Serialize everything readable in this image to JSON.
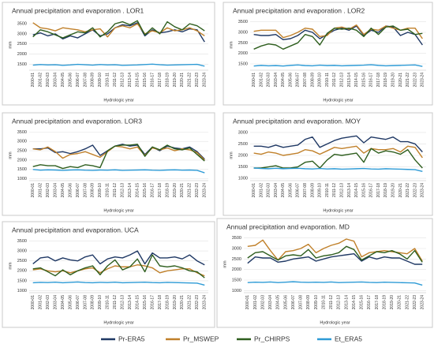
{
  "chart_data": [
    {
      "type": "line",
      "title": "Annual precipitation and evaporation . LOR1",
      "y_label": "mm",
      "x_label": "Hydrologic year",
      "categories": [
        "2000-01",
        "2001-02",
        "2002-03",
        "2003-04",
        "2004-05",
        "2005-06",
        "2006-07",
        "2007-08",
        "2008-09",
        "2009-10",
        "2010-11",
        "2011-12",
        "2012-13",
        "2013-14",
        "2014-15",
        "2015-16",
        "2016-17",
        "2017-18",
        "2018-19",
        "2019-20",
        "2020-21",
        "2021-22",
        "2022-23",
        "2023-24"
      ],
      "ylim": [
        1200,
        3700
      ],
      "yticks": [
        1500,
        2000,
        2500,
        3000,
        3500
      ],
      "grid": true,
      "series": [
        {
          "name": "Pr-ERA5",
          "color": "#1f3864",
          "values": [
            2950,
            3050,
            2900,
            3000,
            2750,
            2900,
            2800,
            3000,
            3200,
            2900,
            3000,
            3300,
            3450,
            3400,
            3550,
            2900,
            3200,
            3050,
            3100,
            3200,
            3100,
            3250,
            3200,
            2600
          ]
        },
        {
          "name": "Pr_MSWEP",
          "color": "#c0802a",
          "values": [
            3550,
            3300,
            3250,
            3150,
            3300,
            3250,
            3200,
            3100,
            3200,
            3250,
            2850,
            3300,
            3400,
            3300,
            3500,
            3000,
            3150,
            3050,
            3300,
            3150,
            3200,
            3300,
            3150,
            2900
          ]
        },
        {
          "name": "Pr_CHIRPS",
          "color": "#2e5e1e",
          "values": [
            2850,
            3200,
            3100,
            2950,
            2800,
            2950,
            3100,
            3050,
            3300,
            2850,
            3100,
            3500,
            3600,
            3450,
            3650,
            2950,
            3300,
            3000,
            3600,
            3350,
            3200,
            3500,
            3400,
            3150
          ]
        },
        {
          "name": "Et_ERA5",
          "color": "#2e9bd6",
          "values": [
            1450,
            1480,
            1460,
            1470,
            1440,
            1460,
            1490,
            1470,
            1450,
            1480,
            1460,
            1470,
            1440,
            1450,
            1460,
            1480,
            1500,
            1470,
            1450,
            1460,
            1470,
            1480,
            1490,
            1400
          ]
        }
      ]
    },
    {
      "type": "line",
      "title": "Annual precipitation and evaporation . LOR2",
      "y_label": "mm",
      "x_label": "Hydrologic year",
      "categories": [
        "2000-01",
        "2001-02",
        "2002-03",
        "2003-04",
        "2004-05",
        "2005-06",
        "2006-07",
        "2007-08",
        "2008-09",
        "2009-10",
        "2010-11",
        "2011-12",
        "2012-13",
        "2013-14",
        "2014-15",
        "2015-16",
        "2016-17",
        "2017-18",
        "2018-19",
        "2019-20",
        "2020-21",
        "2021-22",
        "2022-23",
        "2023-24"
      ],
      "ylim": [
        1200,
        3600
      ],
      "yticks": [
        1500,
        2000,
        2500,
        3000,
        3500
      ],
      "grid": true,
      "series": [
        {
          "name": "Pr-ERA5",
          "color": "#1f3864",
          "values": [
            2900,
            2850,
            2850,
            2900,
            2650,
            2700,
            2850,
            3100,
            3000,
            2700,
            2900,
            3100,
            3200,
            3100,
            3300,
            2850,
            3100,
            3000,
            3300,
            3250,
            2850,
            3000,
            2900,
            2400
          ]
        },
        {
          "name": "Pr_MSWEP",
          "color": "#c0802a",
          "values": [
            3050,
            3100,
            3100,
            3100,
            2750,
            2850,
            3000,
            3200,
            3150,
            2800,
            2850,
            3200,
            3250,
            3150,
            3350,
            2900,
            3150,
            3100,
            3300,
            3200,
            3100,
            3200,
            3200,
            2700
          ]
        },
        {
          "name": "Pr_CHIRPS",
          "color": "#2e5e1e",
          "values": [
            2200,
            2350,
            2450,
            2400,
            2200,
            2350,
            2500,
            2900,
            2800,
            2400,
            2950,
            3200,
            3150,
            3200,
            3100,
            2800,
            3200,
            2900,
            3250,
            3300,
            3100,
            3150,
            2900,
            2950
          ]
        },
        {
          "name": "Et_ERA5",
          "color": "#2e9bd6",
          "values": [
            1400,
            1430,
            1410,
            1420,
            1400,
            1430,
            1450,
            1420,
            1410,
            1440,
            1420,
            1430,
            1410,
            1420,
            1430,
            1440,
            1460,
            1430,
            1410,
            1420,
            1430,
            1440,
            1450,
            1380
          ]
        }
      ]
    },
    {
      "type": "line",
      "title": "Annual precipitation and evaporation. LOR3",
      "y_label": "mm",
      "x_label": "Hydrologic year",
      "categories": [
        "2000-01",
        "2001-02",
        "2002-03",
        "2003-04",
        "2004-05",
        "2005-06",
        "2006-07",
        "2007-08",
        "2008-09",
        "2009-10",
        "2010-11",
        "2011-12",
        "2012-13",
        "2013-14",
        "2014-15",
        "2015-16",
        "2016-17",
        "2017-18",
        "2018-19",
        "2019-20",
        "2020-21",
        "2021-22",
        "2022-23",
        "2023-24"
      ],
      "ylim": [
        900,
        3600
      ],
      "yticks": [
        1000,
        1500,
        2000,
        2500,
        3000,
        3500
      ],
      "grid": true,
      "series": [
        {
          "name": "Pr-ERA5",
          "color": "#1f3864",
          "values": [
            2600,
            2600,
            2650,
            2400,
            2450,
            2350,
            2450,
            2600,
            2800,
            2250,
            2500,
            2750,
            2850,
            2750,
            2800,
            2300,
            2700,
            2500,
            2750,
            2650,
            2600,
            2700,
            2450,
            2050
          ]
        },
        {
          "name": "Pr_MSWEP",
          "color": "#c0802a",
          "values": [
            2600,
            2550,
            2700,
            2450,
            2100,
            2300,
            2350,
            2450,
            2300,
            2150,
            2450,
            2750,
            2700,
            2600,
            2700,
            2250,
            2650,
            2550,
            2650,
            2500,
            2600,
            2550,
            2400,
            2000
          ]
        },
        {
          "name": "Pr_CHIRPS",
          "color": "#2e5e1e",
          "values": [
            1650,
            1750,
            1700,
            1700,
            1550,
            1650,
            1600,
            1750,
            1700,
            1600,
            2500,
            2750,
            2800,
            2800,
            2850,
            2200,
            2700,
            2550,
            2800,
            2600,
            2550,
            2650,
            2300,
            1950
          ]
        },
        {
          "name": "Et_ERA5",
          "color": "#2e9bd6",
          "values": [
            1500,
            1460,
            1480,
            1470,
            1450,
            1470,
            1480,
            1460,
            1450,
            1470,
            1460,
            1480,
            1450,
            1460,
            1470,
            1480,
            1460,
            1450,
            1470,
            1480,
            1460,
            1470,
            1450,
            1320
          ]
        }
      ]
    },
    {
      "type": "line",
      "title": "Annual precipitation and evaporation. MOY",
      "y_label": "mm",
      "x_label": "Hydrologic year",
      "categories": [
        "2000-01",
        "2001-02",
        "2002-03",
        "2003-04",
        "2004-05",
        "2005-06",
        "2006-07",
        "2007-08",
        "2008-09",
        "2009-10",
        "2010-11",
        "2011-12",
        "2012-13",
        "2013-14",
        "2014-15",
        "2015-16",
        "2016-17",
        "2017-18",
        "2018-19",
        "2019-20",
        "2020-21",
        "2021-22",
        "2022-23",
        "2023-24"
      ],
      "ylim": [
        900,
        3100
      ],
      "yticks": [
        1000,
        1500,
        2000,
        2500,
        3000
      ],
      "grid": true,
      "series": [
        {
          "name": "Pr-ERA5",
          "color": "#1f3864",
          "values": [
            2400,
            2400,
            2350,
            2450,
            2350,
            2400,
            2450,
            2700,
            2800,
            2350,
            2500,
            2650,
            2750,
            2800,
            2850,
            2550,
            2800,
            2750,
            2700,
            2800,
            2600,
            2600,
            2500,
            2150
          ]
        },
        {
          "name": "Pr_MSWEP",
          "color": "#c0802a",
          "values": [
            2100,
            2050,
            2150,
            2100,
            2000,
            2050,
            2100,
            2250,
            2200,
            2050,
            2200,
            2350,
            2300,
            2350,
            2400,
            2100,
            2300,
            2250,
            2250,
            2300,
            2150,
            2400,
            2350,
            1900
          ]
        },
        {
          "name": "Pr_CHIRPS",
          "color": "#2e5e1e",
          "values": [
            1450,
            1450,
            1500,
            1550,
            1450,
            1450,
            1500,
            1700,
            1750,
            1450,
            1800,
            2050,
            2000,
            2050,
            2100,
            1700,
            2300,
            2100,
            2200,
            2150,
            2050,
            2250,
            1800,
            1450
          ]
        },
        {
          "name": "Et_ERA5",
          "color": "#2e9bd6",
          "values": [
            1450,
            1430,
            1420,
            1440,
            1420,
            1430,
            1440,
            1420,
            1410,
            1430,
            1410,
            1420,
            1400,
            1410,
            1420,
            1430,
            1410,
            1400,
            1420,
            1410,
            1400,
            1390,
            1380,
            1300
          ]
        }
      ]
    },
    {
      "type": "line",
      "title": "Annual precipitation and evaporation. UCA",
      "y_label": "mm",
      "x_label": "Hydrologic year",
      "categories": [
        "2000-01",
        "2001-02",
        "2002-03",
        "2003-04",
        "2004-05",
        "2005-06",
        "2006-07",
        "2007-08",
        "2008-09",
        "2009-10",
        "2010-11",
        "2011-12",
        "2012-13",
        "2013-14",
        "2014-15",
        "2015-16",
        "2016-17",
        "2017-18",
        "2018-19",
        "2019-20",
        "2020-21",
        "2021-22",
        "2022-23",
        "2023-24"
      ],
      "ylim": [
        900,
        3600
      ],
      "yticks": [
        1000,
        1500,
        2000,
        2500,
        3000,
        3500
      ],
      "grid": true,
      "series": [
        {
          "name": "Pr-ERA5",
          "color": "#1f3864",
          "values": [
            2350,
            2650,
            2700,
            2500,
            2650,
            2550,
            2500,
            2700,
            2800,
            2350,
            2600,
            2700,
            2650,
            2800,
            3000,
            2350,
            2900,
            2650,
            2650,
            2700,
            2600,
            2800,
            2500,
            2300
          ]
        },
        {
          "name": "Pr_MSWEP",
          "color": "#c0802a",
          "values": [
            2050,
            2100,
            2000,
            1950,
            2000,
            1900,
            2000,
            2100,
            2150,
            1900,
            2100,
            2250,
            2200,
            2200,
            2300,
            2250,
            2150,
            1900,
            2000,
            2050,
            2100,
            2100,
            1900,
            1750
          ]
        },
        {
          "name": "Pr_CHIRPS",
          "color": "#2e5e1e",
          "values": [
            2100,
            2150,
            1950,
            1750,
            2050,
            1800,
            2000,
            2150,
            2250,
            1800,
            2250,
            2550,
            2050,
            2200,
            2600,
            1950,
            2800,
            2250,
            2200,
            2250,
            2150,
            2000,
            1950,
            1650
          ]
        },
        {
          "name": "Et_ERA5",
          "color": "#2e9bd6",
          "values": [
            1400,
            1420,
            1410,
            1430,
            1400,
            1420,
            1440,
            1410,
            1400,
            1420,
            1410,
            1430,
            1400,
            1410,
            1420,
            1430,
            1410,
            1400,
            1420,
            1410,
            1400,
            1390,
            1380,
            1280
          ]
        }
      ]
    },
    {
      "type": "line",
      "title": "Annual precipitation and evaporation. MD",
      "y_label": "mm",
      "x_label": "Hydrologic year",
      "categories": [
        "2000-01",
        "2001-02",
        "2002-03",
        "2003-04",
        "2004-05",
        "2005-06",
        "2006-07",
        "2007-08",
        "2008-09",
        "2009-10",
        "2010-11",
        "2011-12",
        "2012-13",
        "2013-14",
        "2014-15",
        "2015-16",
        "2016-17",
        "2017-18",
        "2018-19",
        "2019-20",
        "2020-21",
        "2021-22",
        "2022-23",
        "2023-24"
      ],
      "ylim": [
        900,
        3600
      ],
      "yticks": [
        1000,
        1500,
        2000,
        2500,
        3000,
        3500
      ],
      "grid": true,
      "series": [
        {
          "name": "Pr-ERA5",
          "color": "#1f3864",
          "values": [
            2300,
            2600,
            2550,
            2550,
            2350,
            2400,
            2500,
            2550,
            2600,
            2400,
            2500,
            2600,
            2650,
            2700,
            2750,
            2400,
            2600,
            2500,
            2600,
            2550,
            2550,
            2400,
            2250,
            2250
          ]
        },
        {
          "name": "Pr_MSWEP",
          "color": "#c0802a",
          "values": [
            3100,
            3150,
            3400,
            2900,
            2450,
            2850,
            2900,
            3000,
            3200,
            2800,
            3000,
            3150,
            3250,
            3450,
            3350,
            2600,
            2800,
            2850,
            2900,
            2850,
            2800,
            2750,
            3000,
            2400
          ]
        },
        {
          "name": "Pr_CHIRPS",
          "color": "#2e5e1e",
          "values": [
            2550,
            2800,
            2850,
            2650,
            2450,
            2650,
            2700,
            2650,
            2950,
            2550,
            2650,
            2700,
            2800,
            3100,
            2950,
            2450,
            2650,
            2850,
            2800,
            2900,
            2750,
            2500,
            2900,
            2350
          ]
        },
        {
          "name": "Et_ERA5",
          "color": "#2e9bd6",
          "values": [
            1380,
            1400,
            1390,
            1410,
            1380,
            1400,
            1420,
            1400,
            1390,
            1400,
            1390,
            1410,
            1380,
            1390,
            1400,
            1410,
            1390,
            1380,
            1400,
            1390,
            1380,
            1370,
            1360,
            1260
          ]
        }
      ]
    }
  ]
}
